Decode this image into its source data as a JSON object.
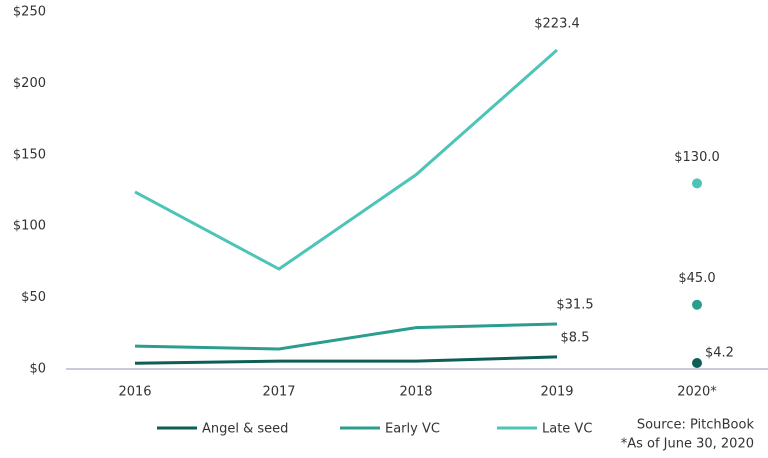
{
  "chart_data": {
    "type": "line",
    "categories": [
      "2016",
      "2017",
      "2018",
      "2019",
      "2020*"
    ],
    "series": [
      {
        "name": "Angel & seed",
        "color": "#0e5e55",
        "values": [
          4,
          5.5,
          5.5,
          8.5,
          4.2
        ],
        "value_labels": [
          null,
          null,
          null,
          "$8.5",
          "$4.2"
        ]
      },
      {
        "name": "Early VC",
        "color": "#2a9d8f",
        "values": [
          16,
          14,
          29,
          31.5,
          45.0
        ],
        "value_labels": [
          null,
          null,
          null,
          "$31.5",
          "$45.0"
        ]
      },
      {
        "name": "Late VC",
        "color": "#4cc4b8",
        "values": [
          124,
          70,
          136,
          223.4,
          130.0
        ],
        "value_labels": [
          null,
          null,
          null,
          "$223.4",
          "$130.0"
        ]
      }
    ],
    "ylim": [
      0,
      250
    ],
    "yticks": [
      {
        "value": 0,
        "label": "$0"
      },
      {
        "value": 50,
        "label": "$50"
      },
      {
        "value": 100,
        "label": "$100"
      },
      {
        "value": 150,
        "label": "$150"
      },
      {
        "value": 200,
        "label": "$200"
      },
      {
        "value": 250,
        "label": "$250"
      }
    ],
    "source": "Source: PitchBook",
    "footnote": "*As of June 30, 2020"
  }
}
